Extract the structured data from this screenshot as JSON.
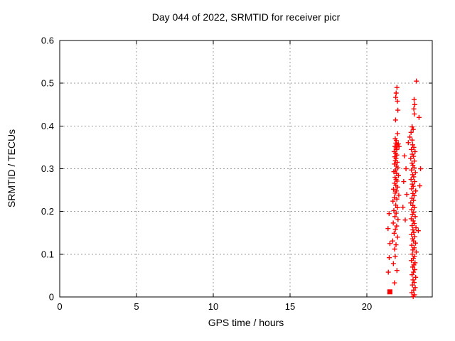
{
  "chart": {
    "title": "Day 044 of 2022, SRMTID for receiver picr",
    "xlabel": "GPS time / hours",
    "ylabel": "SRMTID / TECUs"
  },
  "colors": {
    "marker": "#ff0000",
    "grid": "#9e9e9e",
    "frame": "#000000",
    "background": "#ffffff"
  },
  "chart_data": {
    "type": "scatter",
    "title": "Day 044 of 2022, SRMTID for receiver picr",
    "xlabel": "GPS time / hours",
    "ylabel": "SRMTID / TECUs",
    "xlim": [
      0,
      24.26
    ],
    "ylim": [
      0,
      0.6
    ],
    "x_ticks": [
      0,
      5,
      10,
      15,
      20
    ],
    "y_ticks": [
      0,
      0.1,
      0.2,
      0.3,
      0.4,
      0.5,
      0.6
    ],
    "grid": true,
    "legend": false,
    "marker": "plus",
    "marker_color": "#ff0000",
    "square_marker": {
      "x": 21.5,
      "y": 0.012
    },
    "points": [
      [
        21.96,
        0.49
      ],
      [
        21.91,
        0.477
      ],
      [
        21.88,
        0.467
      ],
      [
        21.99,
        0.458
      ],
      [
        22.02,
        0.437
      ],
      [
        21.87,
        0.414
      ],
      [
        22.0,
        0.382
      ],
      [
        21.85,
        0.37
      ],
      [
        21.92,
        0.366
      ],
      [
        21.89,
        0.36
      ],
      [
        21.97,
        0.356
      ],
      [
        21.83,
        0.352
      ],
      [
        21.9,
        0.349
      ],
      [
        21.95,
        0.345
      ],
      [
        22.05,
        0.358
      ],
      [
        22.1,
        0.352
      ],
      [
        21.78,
        0.34
      ],
      [
        21.88,
        0.336
      ],
      [
        21.95,
        0.332
      ],
      [
        21.82,
        0.328
      ],
      [
        21.9,
        0.324
      ],
      [
        21.86,
        0.319
      ],
      [
        21.98,
        0.315
      ],
      [
        21.8,
        0.311
      ],
      [
        21.92,
        0.306
      ],
      [
        22.02,
        0.302
      ],
      [
        21.87,
        0.297
      ],
      [
        21.76,
        0.293
      ],
      [
        21.94,
        0.289
      ],
      [
        22.06,
        0.284
      ],
      [
        21.84,
        0.28
      ],
      [
        21.9,
        0.275
      ],
      [
        21.97,
        0.271
      ],
      [
        21.81,
        0.266
      ],
      [
        21.89,
        0.261
      ],
      [
        22.0,
        0.257
      ],
      [
        21.74,
        0.252
      ],
      [
        21.92,
        0.248
      ],
      [
        21.85,
        0.243
      ],
      [
        22.08,
        0.238
      ],
      [
        21.79,
        0.233
      ],
      [
        21.95,
        0.229
      ],
      [
        21.7,
        0.224
      ],
      [
        21.88,
        0.215
      ],
      [
        21.99,
        0.209
      ],
      [
        21.76,
        0.202
      ],
      [
        21.91,
        0.196
      ],
      [
        21.83,
        0.188
      ],
      [
        22.03,
        0.181
      ],
      [
        21.72,
        0.173
      ],
      [
        21.94,
        0.166
      ],
      [
        21.86,
        0.158
      ],
      [
        21.78,
        0.149
      ],
      [
        22.0,
        0.14
      ],
      [
        21.68,
        0.131
      ],
      [
        21.9,
        0.122
      ],
      [
        21.81,
        0.112
      ],
      [
        21.85,
        0.095
      ],
      [
        21.73,
        0.078
      ],
      [
        21.96,
        0.062
      ],
      [
        21.8,
        0.033
      ],
      [
        21.45,
        0.195
      ],
      [
        21.38,
        0.16
      ],
      [
        21.5,
        0.125
      ],
      [
        21.46,
        0.092
      ],
      [
        21.4,
        0.058
      ],
      [
        22.45,
        0.33
      ],
      [
        22.55,
        0.3
      ],
      [
        22.4,
        0.27
      ],
      [
        22.6,
        0.24
      ],
      [
        22.35,
        0.21
      ],
      [
        22.5,
        0.18
      ],
      [
        23.23,
        0.505
      ],
      [
        23.08,
        0.462
      ],
      [
        23.12,
        0.45
      ],
      [
        23.06,
        0.44
      ],
      [
        23.1,
        0.428
      ],
      [
        22.95,
        0.398
      ],
      [
        23.02,
        0.392
      ],
      [
        22.88,
        0.385
      ],
      [
        22.8,
        0.374
      ],
      [
        22.95,
        0.367
      ],
      [
        22.7,
        0.361
      ],
      [
        22.98,
        0.356
      ],
      [
        23.06,
        0.35
      ],
      [
        22.9,
        0.345
      ],
      [
        23.14,
        0.34
      ],
      [
        22.96,
        0.334
      ],
      [
        23.04,
        0.329
      ],
      [
        22.86,
        0.324
      ],
      [
        23.1,
        0.318
      ],
      [
        22.94,
        0.313
      ],
      [
        23.0,
        0.308
      ],
      [
        23.08,
        0.302
      ],
      [
        22.9,
        0.297
      ],
      [
        23.16,
        0.291
      ],
      [
        22.98,
        0.286
      ],
      [
        23.05,
        0.281
      ],
      [
        22.88,
        0.275
      ],
      [
        23.12,
        0.27
      ],
      [
        22.96,
        0.264
      ],
      [
        23.02,
        0.259
      ],
      [
        22.92,
        0.253
      ],
      [
        23.18,
        0.248
      ],
      [
        23.0,
        0.242
      ],
      [
        23.08,
        0.237
      ],
      [
        22.94,
        0.231
      ],
      [
        23.04,
        0.226
      ],
      [
        22.86,
        0.22
      ],
      [
        23.0,
        0.214
      ],
      [
        23.1,
        0.209
      ],
      [
        22.92,
        0.204
      ],
      [
        23.05,
        0.198
      ],
      [
        22.97,
        0.193
      ],
      [
        23.15,
        0.188
      ],
      [
        22.89,
        0.183
      ],
      [
        23.02,
        0.178
      ],
      [
        23.09,
        0.172
      ],
      [
        22.95,
        0.167
      ],
      [
        23.2,
        0.162
      ],
      [
        23.0,
        0.157
      ],
      [
        23.06,
        0.151
      ],
      [
        22.91,
        0.146
      ],
      [
        23.12,
        0.141
      ],
      [
        22.98,
        0.136
      ],
      [
        23.04,
        0.131
      ],
      [
        23.17,
        0.126
      ],
      [
        22.93,
        0.121
      ],
      [
        23.08,
        0.115
      ],
      [
        23.0,
        0.11
      ],
      [
        23.22,
        0.105
      ],
      [
        22.96,
        0.1
      ],
      [
        23.1,
        0.095
      ],
      [
        23.03,
        0.09
      ],
      [
        22.9,
        0.085
      ],
      [
        23.14,
        0.08
      ],
      [
        23.06,
        0.075
      ],
      [
        22.99,
        0.07
      ],
      [
        23.12,
        0.064
      ],
      [
        23.04,
        0.058
      ],
      [
        22.95,
        0.052
      ],
      [
        23.18,
        0.046
      ],
      [
        23.01,
        0.04
      ],
      [
        23.08,
        0.034
      ],
      [
        22.97,
        0.028
      ],
      [
        23.15,
        0.022
      ],
      [
        23.05,
        0.016
      ],
      [
        22.93,
        0.01
      ],
      [
        23.1,
        0.005
      ],
      [
        23.02,
        0.001
      ],
      [
        23.4,
        0.42
      ],
      [
        23.45,
        0.26
      ],
      [
        23.5,
        0.3
      ],
      [
        23.35,
        0.155
      ]
    ]
  }
}
